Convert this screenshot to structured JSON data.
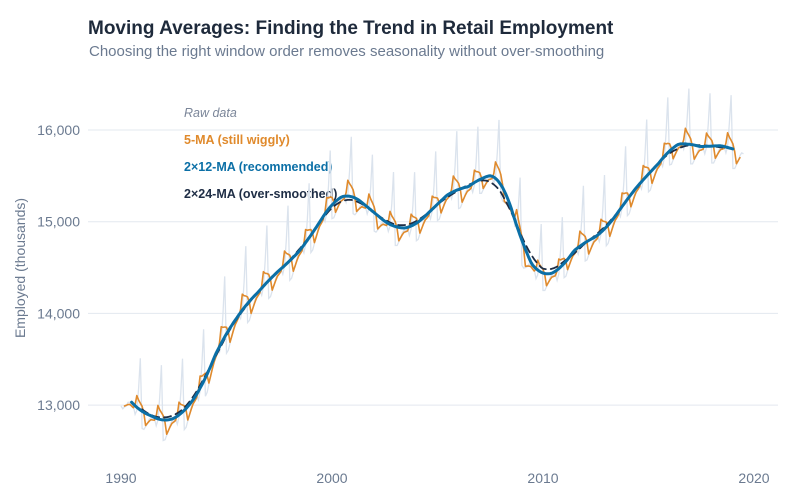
{
  "chart_data": {
    "type": "line",
    "title": "Moving Averages: Finding the Trend in Retail Employment",
    "subtitle": "Choosing the right window order removes seasonality without over-smoothing",
    "xlabel": "",
    "ylabel": "Employed (thousands)",
    "xlim": [
      1989.8,
      2020.4
    ],
    "ylim": [
      12450,
      16450
    ],
    "x_ticks": [
      1990,
      2000,
      2010,
      2020
    ],
    "x_tick_labels": [
      "1990",
      "2000",
      "2010",
      "2020"
    ],
    "y_ticks": [
      13000,
      14000,
      15000,
      16000
    ],
    "y_tick_labels": [
      "13,000",
      "14,000",
      "15,000",
      "16,000"
    ],
    "grid": "horizontal",
    "legend_placement": "top-left",
    "raw": {
      "name": "Raw data",
      "color": "#dbe3ed",
      "frequency": "monthly",
      "years": [
        {
          "year": 1990,
          "values": [
            12990,
            12960,
            12980,
            12990,
            13030,
            13030,
            13000,
            12990,
            12900,
            12940,
            13180,
            13510
          ]
        },
        {
          "year": 1991,
          "values": [
            12745,
            12735,
            12765,
            12795,
            12845,
            12865,
            12845,
            12855,
            12775,
            12835,
            13085,
            13435
          ]
        },
        {
          "year": 1992,
          "values": [
            12614,
            12622,
            12671,
            12719,
            12787,
            12826,
            12824,
            12853,
            12791,
            12869,
            13138,
            13506
          ]
        },
        {
          "year": 1993,
          "values": [
            12733,
            12758,
            12827,
            12893,
            12978,
            13037,
            13053,
            13102,
            13057,
            13153,
            13442,
            13827
          ]
        },
        {
          "year": 1994,
          "values": [
            13097,
            13141,
            13230,
            13314,
            13418,
            13498,
            13532,
            13602,
            13576,
            13690,
            13999,
            14403
          ]
        },
        {
          "year": 1995,
          "values": [
            13566,
            13598,
            13674,
            13746,
            13838,
            13904,
            13926,
            13982,
            13944,
            14046,
            14342,
            14734
          ]
        },
        {
          "year": 1996,
          "values": [
            13901,
            13924,
            13989,
            14051,
            14134,
            14189,
            14201,
            14246,
            14199,
            14291,
            14576,
            14959
          ]
        },
        {
          "year": 1997,
          "values": [
            14164,
            14183,
            14243,
            14302,
            14380,
            14431,
            14439,
            14480,
            14428,
            14517,
            14797,
            15176
          ]
        },
        {
          "year": 1998,
          "values": [
            14361,
            14384,
            14449,
            14511,
            14594,
            14649,
            14661,
            14706,
            14659,
            14751,
            15036,
            15419
          ]
        },
        {
          "year": 1999,
          "values": [
            14664,
            14691,
            14761,
            14829,
            14916,
            14976,
            14994,
            15044,
            15001,
            15099,
            15389,
            15776
          ]
        },
        {
          "year": 2000,
          "values": [
            15034,
            15042,
            15091,
            15139,
            15207,
            15246,
            15244,
            15273,
            15211,
            15289,
            15558,
            15926
          ]
        },
        {
          "year": 2001,
          "values": [
            15088,
            15075,
            15099,
            15126,
            15172,
            15187,
            15163,
            15168,
            15084,
            15141,
            15385,
            15732
          ]
        },
        {
          "year": 2002,
          "values": [
            14898,
            14885,
            14909,
            14936,
            14982,
            14997,
            14973,
            14978,
            14894,
            14951,
            15195,
            15542
          ]
        },
        {
          "year": 2003,
          "values": [
            14740,
            14740,
            14780,
            14820,
            14880,
            14910,
            14900,
            14920,
            14850,
            14920,
            15180,
            15540
          ]
        },
        {
          "year": 2004,
          "values": [
            14793,
            14808,
            14865,
            14920,
            14995,
            15042,
            15048,
            15085,
            15030,
            15115,
            15392,
            15767
          ]
        },
        {
          "year": 2005,
          "values": [
            15013,
            15028,
            15085,
            15140,
            15215,
            15262,
            15268,
            15305,
            15250,
            15335,
            15612,
            15987
          ]
        },
        {
          "year": 2006,
          "values": [
            15144,
            15152,
            15201,
            15249,
            15317,
            15356,
            15354,
            15383,
            15321,
            15399,
            15668,
            16036
          ]
        },
        {
          "year": 2007,
          "values": [
            15310,
            15310,
            15350,
            15390,
            15450,
            15480,
            15470,
            15490,
            15420,
            15490,
            15750,
            16110
          ]
        },
        {
          "year": 2008,
          "values": [
            15279,
            15227,
            15209,
            15197,
            15205,
            15176,
            15114,
            15075,
            14953,
            14971,
            15173,
            15481
          ]
        },
        {
          "year": 2009,
          "values": [
            14525,
            14494,
            14500,
            14510,
            14539,
            14535,
            14495,
            14481,
            14380,
            14420,
            14646,
            14975
          ]
        },
        {
          "year": 2010,
          "values": [
            14250,
            14250,
            14290,
            14330,
            14390,
            14420,
            14410,
            14430,
            14360,
            14430,
            14690,
            15050
          ]
        },
        {
          "year": 2011,
          "values": [
            14389,
            14406,
            14466,
            14524,
            14601,
            14651,
            14659,
            14699,
            14646,
            14734,
            15014,
            15391
          ]
        },
        {
          "year": 2012,
          "values": [
            14571,
            14583,
            14636,
            14688,
            14760,
            14804,
            14806,
            14840,
            14782,
            14864,
            15137,
            15509
          ]
        },
        {
          "year": 2013,
          "values": [
            14738,
            14762,
            14830,
            14895,
            14980,
            15038,
            15052,
            15100,
            15055,
            15150,
            15438,
            15822
          ]
        },
        {
          "year": 2014,
          "values": [
            15066,
            15087,
            15151,
            15213,
            15295,
            15349,
            15361,
            15405,
            15357,
            15449,
            15733,
            16114
          ]
        },
        {
          "year": 2015,
          "values": [
            15325,
            15345,
            15407,
            15468,
            15548,
            15600,
            15610,
            15652,
            15602,
            15693,
            15975,
            16355
          ]
        },
        {
          "year": 2016,
          "values": [
            15619,
            15626,
            15674,
            15721,
            15788,
            15826,
            15824,
            15852,
            15789,
            15866,
            16134,
            16451
          ]
        },
        {
          "year": 2017,
          "values": [
            15630,
            15630,
            15670,
            15710,
            15770,
            15800,
            15790,
            15810,
            15740,
            15810,
            16070,
            16400
          ]
        },
        {
          "year": 2018,
          "values": [
            15640,
            15640,
            15680,
            15720,
            15780,
            15810,
            15800,
            15820,
            15750,
            15820,
            16080,
            16380
          ]
        },
        {
          "year": 2019,
          "values": [
            15580,
            15580,
            15620,
            15660,
            15720,
            15750,
            15740
          ]
        }
      ]
    },
    "series": [
      {
        "name": "5-MA (still wiggly)",
        "ma_order": [
          5
        ],
        "color": "#e08a2c",
        "style": "solid"
      },
      {
        "name": "2×12-MA (recommended)",
        "ma_order": [
          2,
          12
        ],
        "color": "#0b6fa6",
        "style": "solid-thick"
      },
      {
        "name": "2×24-MA (over-smoothed)",
        "ma_order": [
          2,
          24
        ],
        "color": "#1e2d45",
        "style": "dashed"
      }
    ]
  }
}
